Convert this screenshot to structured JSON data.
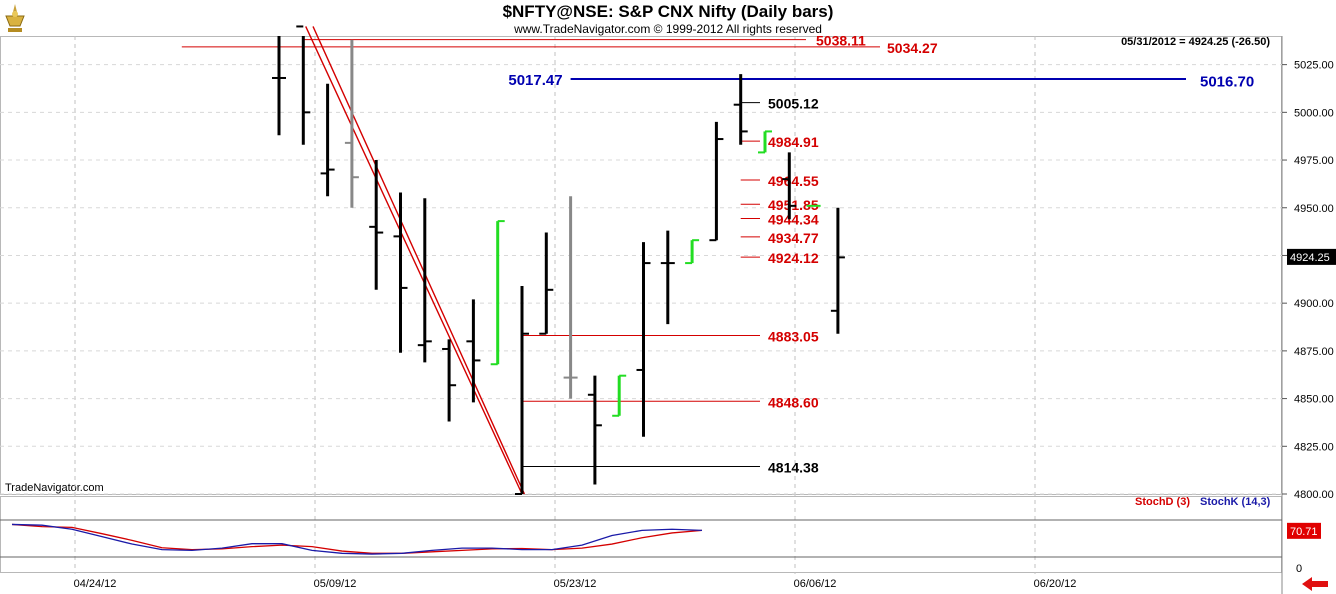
{
  "header": {
    "title": "$NFTY@NSE:  S&P CNX Nifty  (Daily bars)",
    "copyright": "www.TradeNavigator.com © 1999-2012 All rights reserved",
    "price_readout": "05/31/2012 = 4924.25 (-26.50)",
    "watermark": "TradeNavigator.com"
  },
  "icons": {
    "logo": "trade-navigator-logo-icon",
    "nav": "red-left-arrow-icon"
  },
  "colors": {
    "up_bar": "#22dd22",
    "down_bar": "#000000",
    "neutral_bar": "#888888",
    "levels": "#d40000",
    "key_level": "#0000b0",
    "stochD": "#d40000",
    "stochK": "#1a1aa8"
  },
  "chart_data": {
    "type": "ohlc",
    "title": "$NFTY@NSE:  S&P CNX Nifty  (Daily bars)",
    "price_axis": {
      "ylim": [
        4800,
        5040
      ],
      "ticks": [
        "5025.00",
        "5000.00",
        "4975.00",
        "4950.00",
        "4925.00",
        "4900.00",
        "4875.00",
        "4850.00",
        "4825.00",
        "4800.00"
      ],
      "last_label": "4924.25"
    },
    "date_axis": {
      "ticks": [
        "04/24/12",
        "05/09/12",
        "05/23/12",
        "06/06/12",
        "06/20/12"
      ]
    },
    "bars": [
      {
        "i": 0,
        "o": 5018,
        "h": 5045,
        "l": 4988,
        "c": 5018,
        "color": "black"
      },
      {
        "i": 1,
        "o": 5045,
        "h": 5045,
        "l": 4983,
        "c": 5000,
        "color": "black"
      },
      {
        "i": 2,
        "o": 4968,
        "h": 5015,
        "l": 4956,
        "c": 4970,
        "color": "black"
      },
      {
        "i": 3,
        "o": 4984,
        "h": 5038,
        "l": 4950,
        "c": 4966,
        "color": "gray"
      },
      {
        "i": 4,
        "o": 4940,
        "h": 4975,
        "l": 4907,
        "c": 4937,
        "color": "black"
      },
      {
        "i": 5,
        "o": 4935,
        "h": 4958,
        "l": 4874,
        "c": 4908,
        "color": "black"
      },
      {
        "i": 6,
        "o": 4878,
        "h": 4955,
        "l": 4869,
        "c": 4880,
        "color": "black"
      },
      {
        "i": 7,
        "o": 4876,
        "h": 4881,
        "l": 4838,
        "c": 4857,
        "color": "black"
      },
      {
        "i": 8,
        "o": 4880,
        "h": 4902,
        "l": 4848,
        "c": 4870,
        "color": "black"
      },
      {
        "i": 9,
        "o": 4868,
        "h": 4943,
        "l": 4868,
        "c": 4943,
        "color": "green"
      },
      {
        "i": 10,
        "o": 4800,
        "h": 4909,
        "l": 4800,
        "c": 4884,
        "color": "black"
      },
      {
        "i": 11,
        "o": 4884,
        "h": 4937,
        "l": 4884,
        "c": 4907,
        "color": "black"
      },
      {
        "i": 12,
        "o": 4861,
        "h": 4956,
        "l": 4850,
        "c": 4861,
        "color": "gray"
      },
      {
        "i": 13,
        "o": 4852,
        "h": 4862,
        "l": 4805,
        "c": 4836,
        "color": "black"
      },
      {
        "i": 14,
        "o": 4841,
        "h": 4862,
        "l": 4841,
        "c": 4862,
        "color": "green"
      },
      {
        "i": 15,
        "o": 4865,
        "h": 4932,
        "l": 4830,
        "c": 4921,
        "color": "black"
      },
      {
        "i": 16,
        "o": 4921,
        "h": 4938,
        "l": 4889,
        "c": 4921,
        "color": "black"
      },
      {
        "i": 17,
        "o": 4921,
        "h": 4933,
        "l": 4921,
        "c": 4933,
        "color": "green"
      },
      {
        "i": 18,
        "o": 4933,
        "h": 4995,
        "l": 4933,
        "c": 4986,
        "color": "black"
      },
      {
        "i": 19,
        "o": 5004,
        "h": 5020,
        "l": 4983,
        "c": 4990,
        "color": "black"
      },
      {
        "i": 20,
        "o": 4979,
        "h": 4990,
        "l": 4979,
        "c": 4990,
        "color": "green"
      },
      {
        "i": 21,
        "o": 4965,
        "h": 4979,
        "l": 4944,
        "c": 4951,
        "color": "black"
      },
      {
        "i": 22,
        "o": 4951,
        "h": 4951,
        "l": 4951,
        "c": 4951,
        "color": "green"
      },
      {
        "i": 23,
        "o": 4896,
        "h": 4950,
        "l": 4884,
        "c": 4924,
        "color": "black"
      }
    ],
    "levels": [
      {
        "value": 5038.11,
        "label": "5038.11",
        "color": "red",
        "start_bar": 1
      },
      {
        "value": 5034.27,
        "label": "5034.27",
        "color": "red",
        "start_bar": -4
      },
      {
        "value": 5017.47,
        "label": "5017.47",
        "color": "blue",
        "start_bar": 12,
        "label_left": true
      },
      {
        "value": 5016.7,
        "label": "5016.70",
        "color": "blue",
        "label_axis": true
      },
      {
        "value": 5005.12,
        "label": "5005.12",
        "color": "black",
        "start_bar": 19
      },
      {
        "value": 4984.91,
        "label": "4984.91",
        "color": "red",
        "start_bar": 19
      },
      {
        "value": 4964.55,
        "label": "4964.55",
        "color": "red",
        "start_bar": 19
      },
      {
        "value": 4951.85,
        "label": "4951.85",
        "color": "red",
        "start_bar": 19
      },
      {
        "value": 4944.34,
        "label": "4944.34",
        "color": "red",
        "start_bar": 19
      },
      {
        "value": 4934.77,
        "label": "4934.77",
        "color": "red",
        "start_bar": 19
      },
      {
        "value": 4924.12,
        "label": "4924.12",
        "color": "red",
        "start_bar": 19
      },
      {
        "value": 4883.05,
        "label": "4883.05",
        "color": "red",
        "start_bar": 10
      },
      {
        "value": 4848.6,
        "label": "4848.60",
        "color": "red",
        "start_bar": 10
      },
      {
        "value": 4814.38,
        "label": "4814.38",
        "color": "black",
        "start_bar": 10
      }
    ],
    "trendlines": [
      {
        "from": [
          1.1,
          5045
        ],
        "to": [
          10,
          4800
        ],
        "color": "red"
      },
      {
        "from": [
          1.4,
          5045
        ],
        "to": [
          10.1,
          4800
        ],
        "color": "red"
      }
    ],
    "oscillator": {
      "legend_d": "StochD (3)",
      "legend_k": "StochK (14,3)",
      "current": "70.71",
      "axis_zero": "0",
      "stochK": [
        88,
        86,
        75,
        55,
        35,
        20,
        18,
        24,
        36,
        36,
        18,
        10,
        8,
        10,
        18,
        24,
        24,
        20,
        20,
        32,
        58,
        72,
        75,
        72
      ],
      "stochD": [
        88,
        82,
        80,
        63,
        45,
        25,
        20,
        22,
        28,
        32,
        28,
        16,
        10,
        10,
        14,
        18,
        22,
        23,
        20,
        24,
        35,
        52,
        65,
        72
      ]
    }
  }
}
